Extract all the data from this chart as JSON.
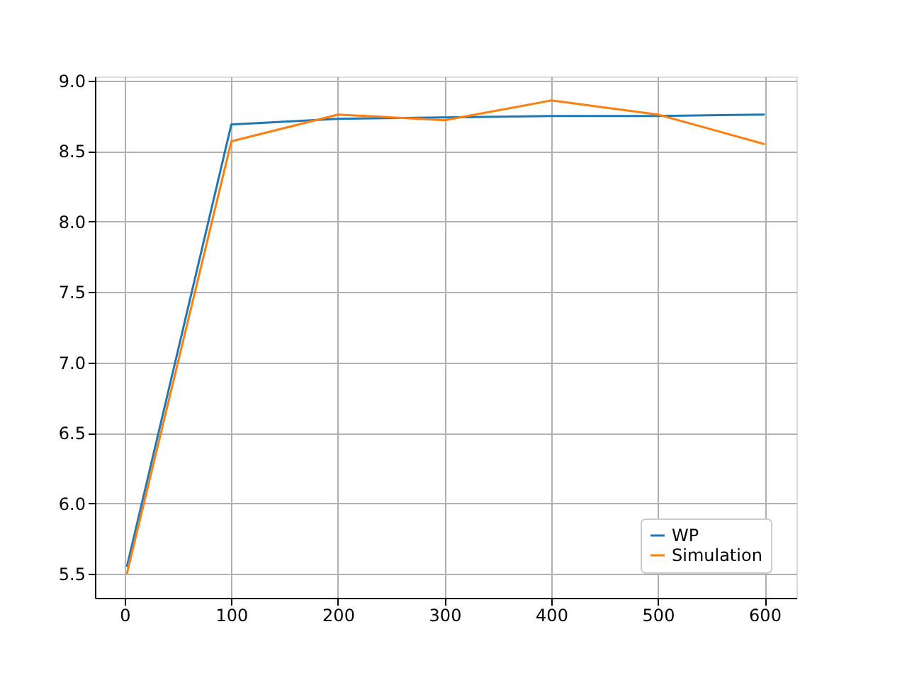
{
  "chart_data": {
    "type": "line",
    "x": [
      2,
      100,
      200,
      300,
      400,
      500,
      600
    ],
    "series": [
      {
        "name": "WP",
        "color": "#1f77b4",
        "values": [
          5.55,
          8.69,
          8.73,
          8.74,
          8.75,
          8.75,
          8.76
        ]
      },
      {
        "name": "Simulation",
        "color": "#ff7f0e",
        "values": [
          5.5,
          8.57,
          8.76,
          8.72,
          8.86,
          8.76,
          8.55
        ]
      }
    ],
    "xlim": [
      -27.9,
      629.9
    ],
    "xticks": [
      0,
      100,
      200,
      300,
      400,
      500,
      600
    ],
    "ylim": [
      5.33,
      9.03
    ],
    "yticks": [
      5.5,
      {
        "value": 6,
        "label": "6.0"
      },
      6.5,
      {
        "value": 7,
        "label": "7.0"
      },
      7.5,
      {
        "value": 8,
        "label": "8.0"
      },
      8.5,
      {
        "value": 9,
        "label": "9.0"
      }
    ],
    "grid": true,
    "legend": "bottom right",
    "marker": "none",
    "line_style": "solid"
  }
}
